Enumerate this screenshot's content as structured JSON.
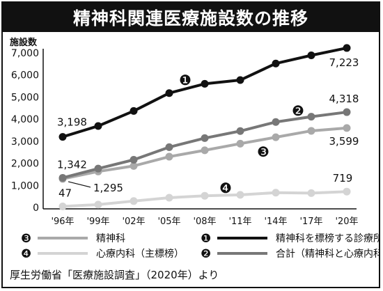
{
  "chart_data": {
    "type": "line",
    "title": "精神科関連医療施設数の推移",
    "ylabel": "施設数",
    "categories": [
      "'96年",
      "'99年",
      "'02年",
      "'05年",
      "'08年",
      "'11年",
      "'14年",
      "'17年",
      "'20年"
    ],
    "ylim": [
      0,
      7000
    ],
    "yticks": [
      "0",
      "1,000",
      "2,000",
      "3,000",
      "4,000",
      "5,000",
      "6,000",
      "7,000"
    ],
    "grid": false,
    "series": [
      {
        "marker": "❶",
        "name": "精神科を標榜する診療所",
        "color": "#111111",
        "values": [
          3198,
          3690,
          4370,
          5180,
          5600,
          5770,
          6520,
          6890,
          7223
        ]
      },
      {
        "marker": "❷",
        "name": "合計（精神科と心療内科）",
        "color": "#777777",
        "values": [
          1342,
          1760,
          2160,
          2730,
          3140,
          3460,
          3870,
          4110,
          4318
        ]
      },
      {
        "marker": "❸",
        "name": "精神科",
        "color": "#a9a9a9",
        "values": [
          1295,
          1630,
          1880,
          2300,
          2590,
          2890,
          3180,
          3470,
          3599
        ]
      },
      {
        "marker": "❹",
        "name": "心療内科（主標榜）",
        "color": "#d4d4d4",
        "values": [
          47,
          130,
          290,
          440,
          530,
          570,
          670,
          650,
          719
        ]
      }
    ],
    "annotations": [
      "3,198",
      "7,223",
      "4,318",
      "3,599",
      "1,342",
      "1,295",
      "47",
      "719"
    ]
  },
  "source": "厚生労働省「医療施設調査」（2020年）より"
}
